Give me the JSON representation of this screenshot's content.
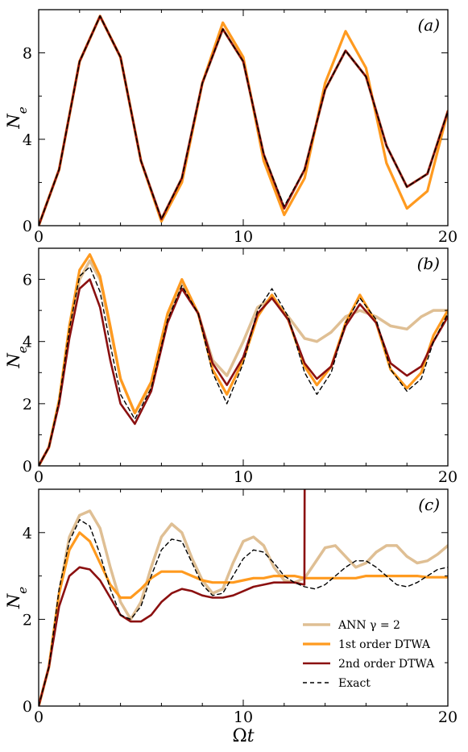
{
  "chart_data": [
    {
      "type": "line",
      "panel_label": "(a)",
      "ylabel": "N_e",
      "xlabel": "",
      "xlim": [
        0,
        20
      ],
      "ylim": [
        0,
        10
      ],
      "xticks": [
        0,
        10,
        20
      ],
      "yticks": [
        0,
        4,
        8
      ],
      "series": [
        {
          "key": "ann",
          "color": "#dfbf94",
          "width": 3.5,
          "x": [
            0,
            1,
            2,
            3,
            4,
            5,
            6,
            7,
            8,
            9,
            10,
            11,
            12,
            13,
            14,
            15,
            16,
            17,
            18,
            19,
            20
          ],
          "y": [
            0,
            2.6,
            7.6,
            9.7,
            7.8,
            3.0,
            0.3,
            2.2,
            6.6,
            9.1,
            7.6,
            3.3,
            0.8,
            2.6,
            6.3,
            8.1,
            6.9,
            3.7,
            1.8,
            2.4,
            5.3
          ]
        },
        {
          "key": "dtwa1",
          "color": "#ff9a1f",
          "width": 3.2,
          "x": [
            0,
            1,
            2,
            3,
            4,
            5,
            6,
            7,
            8,
            9,
            10,
            11,
            12,
            13,
            14,
            15,
            16,
            17,
            18,
            19,
            20
          ],
          "y": [
            0,
            2.6,
            7.6,
            9.7,
            7.8,
            3.0,
            0.2,
            2.0,
            6.6,
            9.4,
            7.8,
            3.0,
            0.5,
            2.2,
            6.6,
            9.0,
            7.3,
            2.9,
            0.8,
            1.6,
            5.3
          ]
        },
        {
          "key": "dtwa2",
          "color": "#8b1010",
          "width": 2.6,
          "x": [
            0,
            1,
            2,
            3,
            4,
            5,
            6,
            7,
            8,
            9,
            10,
            11,
            12,
            13,
            14,
            15,
            16,
            17,
            18,
            19,
            20
          ],
          "y": [
            0,
            2.6,
            7.6,
            9.7,
            7.8,
            3.0,
            0.3,
            2.2,
            6.6,
            9.1,
            7.6,
            3.3,
            0.8,
            2.6,
            6.3,
            8.1,
            6.9,
            3.7,
            1.8,
            2.4,
            5.3
          ]
        },
        {
          "key": "exact",
          "color": "#000000",
          "width": 1.4,
          "dash": "5,4",
          "x": [
            0,
            1,
            2,
            3,
            4,
            5,
            6,
            7,
            8,
            9,
            10,
            11,
            12,
            13,
            14,
            15,
            16,
            17,
            18,
            19,
            20
          ],
          "y": [
            0,
            2.6,
            7.6,
            9.7,
            7.8,
            3.0,
            0.3,
            2.2,
            6.6,
            9.1,
            7.6,
            3.3,
            0.9,
            2.6,
            6.3,
            8.1,
            6.9,
            3.7,
            1.8,
            2.4,
            5.3
          ]
        }
      ]
    },
    {
      "type": "line",
      "panel_label": "(b)",
      "ylabel": "N_e",
      "xlabel": "",
      "xlim": [
        0,
        20
      ],
      "ylim": [
        0,
        7
      ],
      "xticks": [
        0,
        10,
        20
      ],
      "yticks": [
        0,
        2,
        4,
        6
      ],
      "series": [
        {
          "key": "ann",
          "color": "#dfbf94",
          "width": 3.5,
          "x": [
            0,
            0.5,
            1,
            1.5,
            2,
            2.5,
            3,
            3.5,
            4,
            4.7,
            5.5,
            6.3,
            7,
            7.8,
            8.5,
            9.2,
            10,
            10.7,
            11.4,
            12.2,
            13,
            13.6,
            14.3,
            15,
            15.7,
            16.5,
            17.2,
            18,
            18.7,
            19.3,
            20
          ],
          "y": [
            0,
            0.6,
            2.1,
            4.3,
            6.0,
            6.6,
            6.0,
            4.4,
            2.8,
            1.7,
            2.6,
            4.8,
            5.9,
            4.9,
            3.4,
            2.9,
            4.0,
            5.1,
            5.4,
            4.8,
            4.1,
            4.0,
            4.3,
            4.8,
            5.0,
            4.8,
            4.5,
            4.4,
            4.8,
            5.0,
            5.0
          ]
        },
        {
          "key": "dtwa1",
          "color": "#ff9a1f",
          "width": 3.2,
          "x": [
            0,
            0.5,
            1,
            1.5,
            2,
            2.5,
            3,
            3.5,
            4,
            4.7,
            5.5,
            6.3,
            7,
            7.8,
            8.5,
            9.2,
            10,
            10.7,
            11.4,
            12.2,
            13,
            13.6,
            14.3,
            15,
            15.7,
            16.5,
            17.2,
            18,
            18.7,
            19.3,
            20
          ],
          "y": [
            0,
            0.6,
            2.1,
            4.5,
            6.3,
            6.8,
            6.1,
            4.5,
            2.8,
            1.7,
            2.7,
            4.9,
            6.0,
            4.9,
            3.1,
            2.3,
            3.4,
            4.8,
            5.5,
            4.7,
            3.2,
            2.6,
            3.2,
            4.6,
            5.5,
            4.6,
            3.1,
            2.5,
            3.0,
            4.2,
            5.0
          ]
        },
        {
          "key": "dtwa2",
          "color": "#8b1010",
          "width": 2.6,
          "x": [
            0,
            0.5,
            1,
            1.5,
            2,
            2.5,
            3,
            3.5,
            4,
            4.7,
            5.5,
            6.3,
            7,
            7.8,
            8.5,
            9.2,
            10,
            10.7,
            11.4,
            12.2,
            13,
            13.6,
            14.3,
            15,
            15.7,
            16.5,
            17.2,
            18,
            18.7,
            19.3,
            20
          ],
          "y": [
            0,
            0.6,
            2.0,
            4.1,
            5.7,
            6.0,
            5.1,
            3.4,
            2.0,
            1.35,
            2.4,
            4.6,
            5.7,
            4.9,
            3.3,
            2.6,
            3.5,
            4.9,
            5.4,
            4.7,
            3.3,
            2.8,
            3.2,
            4.5,
            5.2,
            4.6,
            3.3,
            2.9,
            3.2,
            4.0,
            4.8
          ]
        },
        {
          "key": "exact",
          "color": "#000000",
          "width": 1.4,
          "dash": "5,4",
          "x": [
            0,
            0.5,
            1,
            1.5,
            2,
            2.5,
            3,
            3.5,
            4,
            4.7,
            5.5,
            6.3,
            7,
            7.8,
            8.5,
            9.2,
            10,
            10.7,
            11.4,
            12.2,
            13,
            13.6,
            14.3,
            15,
            15.7,
            16.5,
            17.2,
            18,
            18.7,
            19.3,
            20
          ],
          "y": [
            0,
            0.6,
            2.1,
            4.4,
            6.1,
            6.4,
            5.6,
            3.9,
            2.3,
            1.5,
            2.5,
            4.7,
            5.8,
            4.9,
            3.0,
            2.0,
            3.3,
            5.0,
            5.7,
            4.8,
            3.0,
            2.3,
            3.0,
            4.6,
            5.4,
            4.7,
            3.1,
            2.4,
            2.8,
            4.0,
            4.9
          ]
        }
      ]
    },
    {
      "type": "line",
      "panel_label": "(c)",
      "ylabel": "N_e",
      "xlabel": "Ωt",
      "xlim": [
        0,
        20
      ],
      "ylim": [
        0,
        5
      ],
      "xticks": [
        0,
        10,
        20
      ],
      "yticks": [
        0,
        2,
        4
      ],
      "series": [
        {
          "key": "ann",
          "color": "#dfbf94",
          "width": 3.5,
          "x": [
            0,
            0.5,
            1,
            1.5,
            2,
            2.5,
            3,
            3.5,
            4,
            4.5,
            5,
            5.5,
            6,
            6.5,
            7,
            7.5,
            8,
            8.5,
            9,
            9.5,
            10,
            10.5,
            11,
            11.5,
            12,
            12.5,
            13,
            13.5,
            14,
            14.5,
            15,
            15.5,
            16,
            16.5,
            17,
            17.5,
            18,
            18.5,
            19,
            19.5,
            20
          ],
          "y": [
            0,
            0.9,
            2.6,
            3.9,
            4.4,
            4.5,
            4.1,
            3.2,
            2.4,
            2.0,
            2.4,
            3.2,
            3.9,
            4.2,
            4.0,
            3.4,
            2.9,
            2.6,
            2.7,
            3.3,
            3.8,
            3.9,
            3.7,
            3.2,
            2.9,
            2.85,
            2.95,
            3.3,
            3.65,
            3.7,
            3.45,
            3.2,
            3.3,
            3.55,
            3.7,
            3.7,
            3.45,
            3.3,
            3.35,
            3.5,
            3.7
          ]
        },
        {
          "key": "dtwa1",
          "color": "#ff9a1f",
          "width": 3.2,
          "x": [
            0,
            0.5,
            1,
            1.5,
            2,
            2.5,
            3,
            3.5,
            4,
            4.5,
            5,
            5.5,
            6,
            6.5,
            7,
            7.5,
            8,
            8.5,
            9,
            9.5,
            10,
            10.5,
            11,
            11.5,
            12,
            12.5,
            13,
            13.5,
            14,
            14.5,
            15,
            15.5,
            16,
            16.5,
            17,
            17.5,
            18,
            18.5,
            19,
            19.5,
            20
          ],
          "y": [
            0,
            0.9,
            2.6,
            3.6,
            4.0,
            3.8,
            3.3,
            2.8,
            2.5,
            2.5,
            2.7,
            2.95,
            3.1,
            3.1,
            3.1,
            3.0,
            2.9,
            2.85,
            2.85,
            2.85,
            2.9,
            2.95,
            2.95,
            3.0,
            3.0,
            3.0,
            2.95,
            2.95,
            2.95,
            2.95,
            2.95,
            2.95,
            3.0,
            3.0,
            3.0,
            3.0,
            3.0,
            3.0,
            2.97,
            2.97,
            2.97
          ]
        },
        {
          "key": "dtwa2",
          "color": "#8b1010",
          "width": 2.6,
          "x": [
            0,
            0.5,
            1,
            1.5,
            2,
            2.5,
            3,
            3.5,
            4,
            4.5,
            5,
            5.5,
            6,
            6.5,
            7,
            7.5,
            8,
            8.5,
            9,
            9.5,
            10,
            10.5,
            11,
            11.5,
            12,
            12.5,
            12.99,
            13.0,
            13.01
          ],
          "y": [
            0,
            0.9,
            2.3,
            3.0,
            3.2,
            3.15,
            2.9,
            2.5,
            2.1,
            1.95,
            1.95,
            2.1,
            2.4,
            2.6,
            2.7,
            2.65,
            2.55,
            2.5,
            2.5,
            2.55,
            2.65,
            2.75,
            2.8,
            2.85,
            2.85,
            2.85,
            2.8,
            5.0,
            5.0
          ]
        },
        {
          "key": "exact",
          "color": "#000000",
          "width": 1.4,
          "dash": "5,4",
          "x": [
            0,
            0.5,
            1,
            1.5,
            2,
            2.5,
            3,
            3.5,
            4,
            4.5,
            5,
            5.5,
            6,
            6.5,
            7,
            7.5,
            8,
            8.5,
            9,
            9.5,
            10,
            10.5,
            11,
            11.5,
            12,
            12.5,
            13,
            13.5,
            14,
            14.5,
            15,
            15.5,
            16,
            16.5,
            17,
            17.5,
            18,
            18.5,
            19,
            19.5,
            20
          ],
          "y": [
            0,
            0.9,
            2.7,
            3.8,
            4.3,
            4.15,
            3.5,
            2.7,
            2.1,
            2.0,
            2.3,
            3.0,
            3.6,
            3.85,
            3.8,
            3.3,
            2.8,
            2.55,
            2.6,
            3.0,
            3.4,
            3.6,
            3.55,
            3.3,
            3.0,
            2.85,
            2.75,
            2.7,
            2.8,
            3.0,
            3.2,
            3.35,
            3.35,
            3.2,
            3.0,
            2.8,
            2.75,
            2.85,
            3.0,
            3.15,
            3.2
          ]
        }
      ],
      "legend": {
        "placement": "bottom-right",
        "entries": [
          {
            "key": "ann",
            "label": "ANN γ = 2"
          },
          {
            "key": "dtwa1",
            "label": "1st order DTWA"
          },
          {
            "key": "dtwa2",
            "label": "2nd order DTWA"
          },
          {
            "key": "exact",
            "label": "Exact"
          }
        ]
      }
    }
  ]
}
